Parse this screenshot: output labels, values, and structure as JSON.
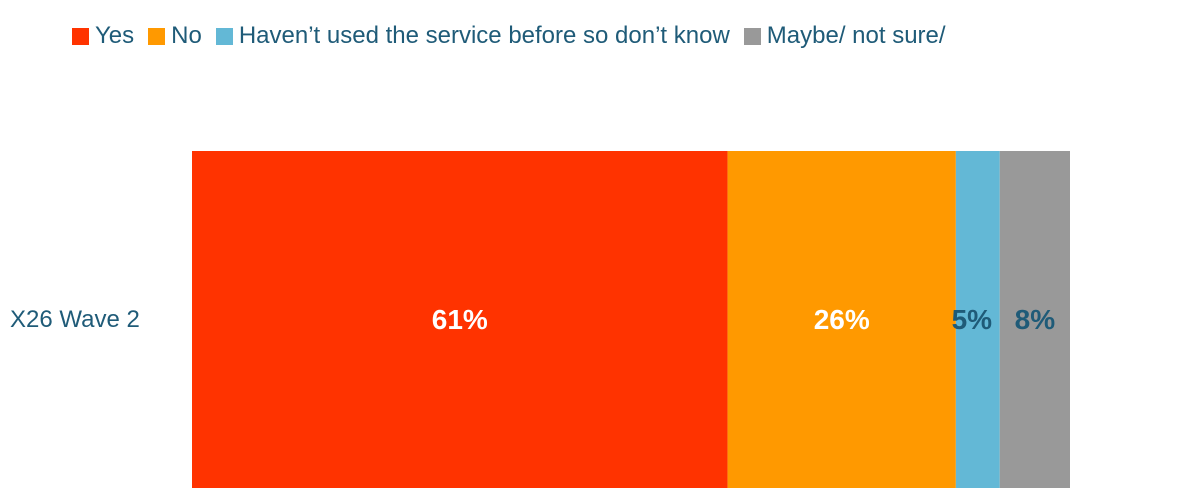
{
  "chart_data": {
    "type": "bar",
    "orientation": "horizontal",
    "stacked": true,
    "categories": [
      "X26 Wave 2"
    ],
    "series": [
      {
        "name": "Yes",
        "values": [
          61
        ],
        "label": "61%",
        "color": "#ff3300",
        "label_color": "#ffffff"
      },
      {
        "name": "No",
        "values": [
          26
        ],
        "label": "26%",
        "color": "#ff9900",
        "label_color": "#ffffff"
      },
      {
        "name": "Haven’t used the service before so don’t know",
        "values": [
          5
        ],
        "label": "5%",
        "color": "#63b8d6",
        "label_color": "#1f5b78"
      },
      {
        "name": "Maybe/ not sure/",
        "values": [
          8
        ],
        "label": "8%",
        "color": "#999999",
        "label_color": "#1f5b78"
      }
    ],
    "xlim": [
      0,
      100
    ],
    "legend_position": "top",
    "grid": false
  }
}
